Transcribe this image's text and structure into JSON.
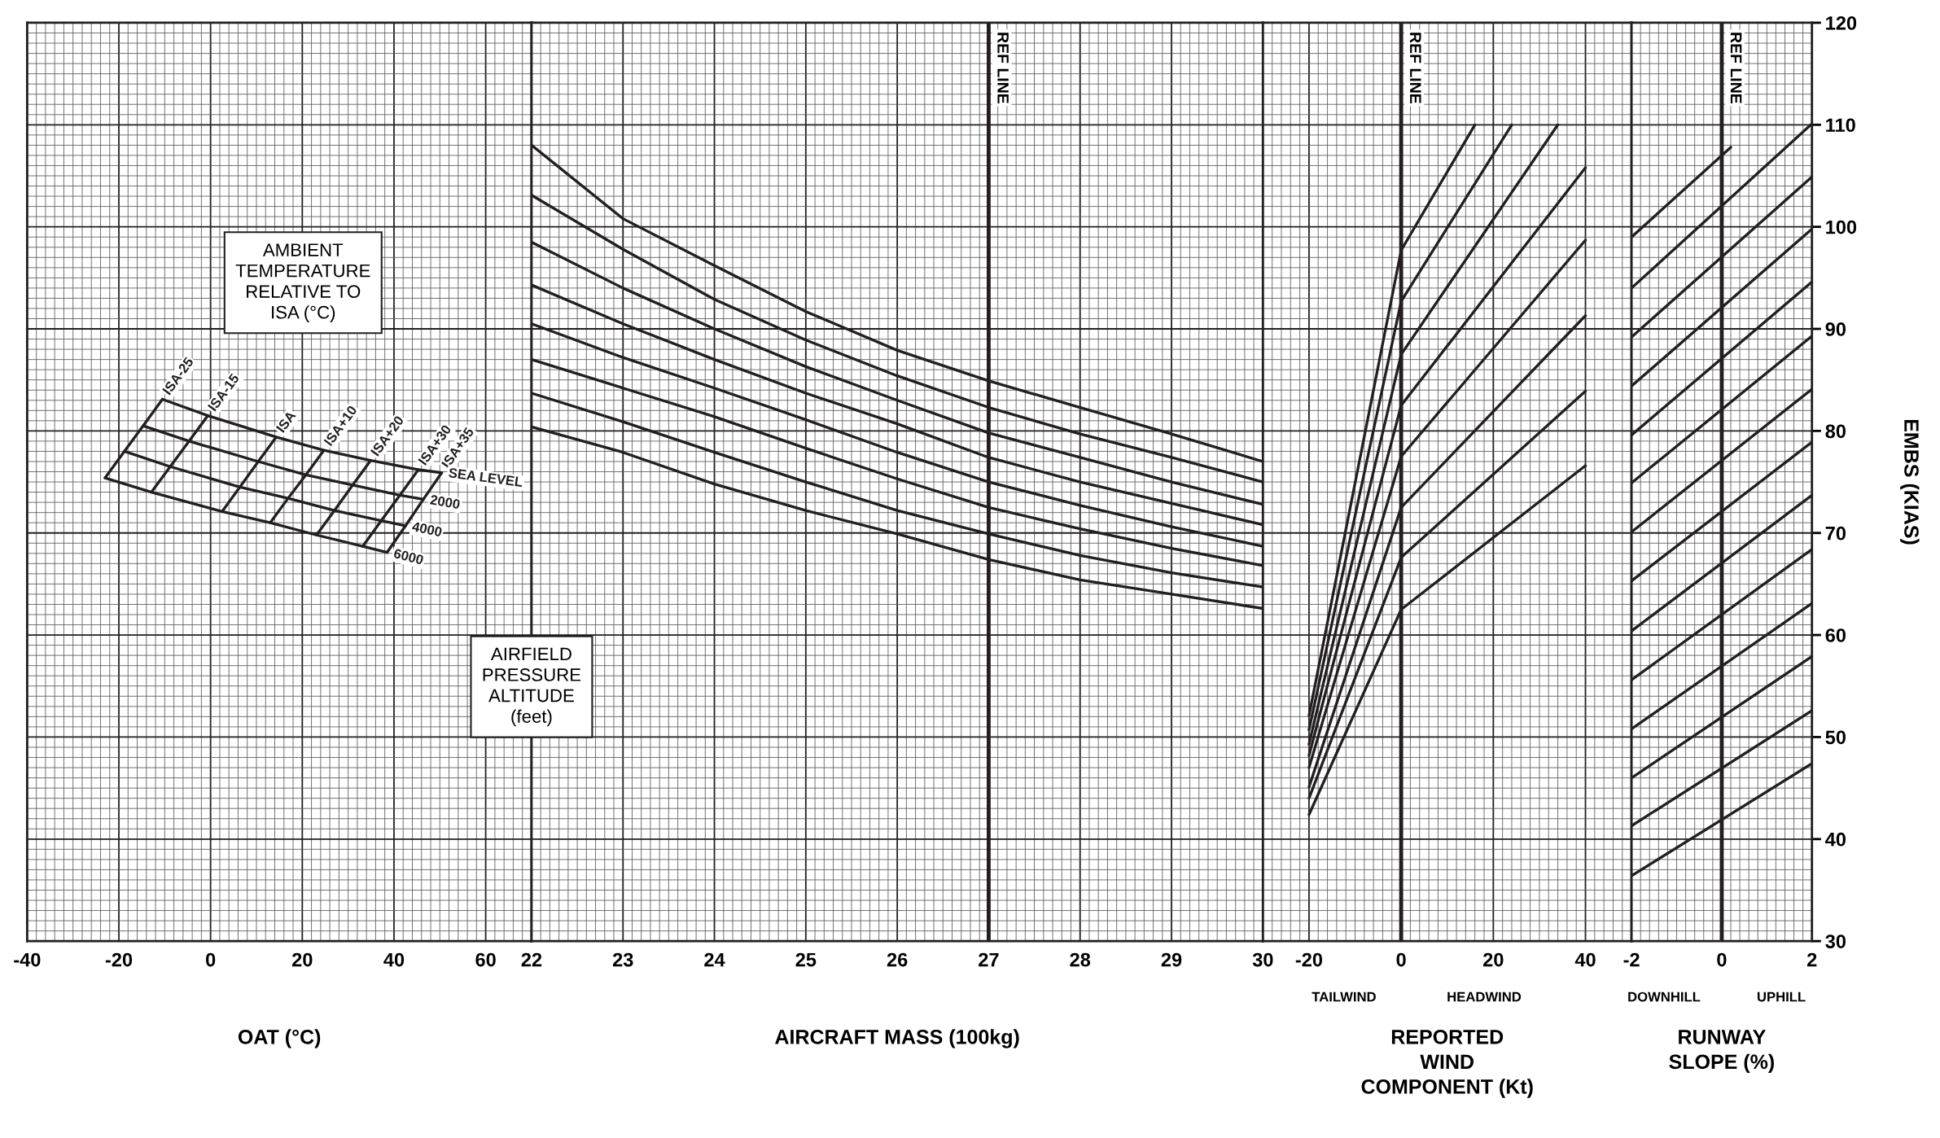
{
  "chart_data": [
    {
      "type": "line",
      "xlabel": "OAT (°C)",
      "xlim": [
        -40,
        70
      ],
      "xticks": [
        -40,
        -20,
        0,
        20,
        40,
        60
      ],
      "ylim": [
        30,
        120
      ],
      "yticks": [
        30,
        40,
        50,
        60,
        70,
        80,
        90,
        100,
        110,
        120
      ],
      "grid": true,
      "tick_labels": "x",
      "legend": false,
      "annotations": [
        "AMBIENT\nTEMPERATURE\nRELATIVE TO\nISA (°C)",
        "AIRFIELD\nPRESSURE\nALTITUDE\n(feet)"
      ],
      "series": [
        {
          "name": "ISA-25",
          "color": "#231f20",
          "x": [
            -23.0,
            -18.8,
            -14.7,
            -10.5
          ],
          "values": [
            75.4,
            78.0,
            80.5,
            83.1
          ]
        },
        {
          "name": "ISA-15",
          "color": "#231f20",
          "x": [
            -12.9,
            -8.8,
            -4.7,
            -0.6
          ],
          "values": [
            74.0,
            76.5,
            79.0,
            81.5
          ]
        },
        {
          "name": "ISA",
          "color": "#231f20",
          "x": [
            2.5,
            6.4,
            10.4,
            14.3
          ],
          "values": [
            72.1,
            74.5,
            77.0,
            79.4
          ]
        },
        {
          "name": "ISA+10",
          "color": "#231f20",
          "x": [
            13.0,
            16.9,
            20.8,
            24.7
          ],
          "values": [
            71.0,
            73.4,
            75.7,
            78.1
          ]
        },
        {
          "name": "ISA+20",
          "color": "#231f20",
          "x": [
            23.1,
            27.0,
            31.0,
            34.9
          ],
          "values": [
            69.8,
            72.2,
            74.7,
            77.1
          ]
        },
        {
          "name": "ISA+30",
          "color": "#231f20",
          "x": [
            33.2,
            37.2,
            41.3,
            45.3
          ],
          "values": [
            68.7,
            71.2,
            73.7,
            76.2
          ]
        },
        {
          "name": "ISA+35",
          "color": "#231f20",
          "x": [
            38.5,
            42.5,
            46.4,
            50.4
          ],
          "values": [
            68.1,
            70.7,
            73.3,
            75.9
          ]
        },
        {
          "name": "SEA LEVEL",
          "color": "#231f20",
          "x": [
            -10.5,
            -0.6,
            14.3,
            24.7,
            34.9,
            45.3,
            50.4
          ],
          "values": [
            83.1,
            81.5,
            79.4,
            78.1,
            77.1,
            76.2,
            75.9
          ]
        },
        {
          "name": "2000",
          "color": "#231f20",
          "x": [
            -14.7,
            -4.7,
            10.4,
            20.8,
            31.0,
            41.3,
            46.4
          ],
          "values": [
            80.5,
            79.0,
            77.0,
            75.7,
            74.7,
            73.7,
            73.3
          ]
        },
        {
          "name": "4000",
          "color": "#231f20",
          "x": [
            -18.8,
            -8.8,
            6.4,
            16.9,
            27.0,
            37.2,
            42.5
          ],
          "values": [
            78.0,
            76.5,
            74.5,
            73.4,
            72.2,
            71.2,
            70.7
          ]
        },
        {
          "name": "6000",
          "color": "#231f20",
          "x": [
            -23.0,
            -12.9,
            2.5,
            13.0,
            23.1,
            33.2,
            38.5
          ],
          "values": [
            75.4,
            74.0,
            72.1,
            71.0,
            69.8,
            68.7,
            68.1
          ]
        }
      ]
    },
    {
      "type": "line",
      "xlabel": "AIRCRAFT MASS (100kg)",
      "xlim": [
        22,
        30
      ],
      "xticks": [
        22,
        23,
        24,
        25,
        26,
        27,
        28,
        29,
        30
      ],
      "ylim": [
        30,
        120
      ],
      "yticks": [
        30,
        40,
        50,
        60,
        70,
        80,
        90,
        100,
        110,
        120
      ],
      "grid": true,
      "tick_labels": "x",
      "legend": false,
      "ref_lines": [
        {
          "axis": "x",
          "value": 27,
          "label": "REF LINE"
        }
      ],
      "x": [
        22,
        23,
        24,
        25,
        26,
        27,
        28,
        29,
        30
      ],
      "series": [
        {
          "color": "#231f20",
          "values": [
            108.0,
            100.8,
            96.2,
            91.7,
            87.9,
            84.9,
            82.3,
            79.7,
            77.0
          ]
        },
        {
          "color": "#231f20",
          "values": [
            103.1,
            97.8,
            92.9,
            88.9,
            85.4,
            82.3,
            79.7,
            77.4,
            75.0
          ]
        },
        {
          "color": "#231f20",
          "values": [
            98.5,
            94.0,
            90.0,
            86.3,
            83.0,
            79.8,
            77.4,
            75.0,
            72.8
          ]
        },
        {
          "color": "#231f20",
          "values": [
            94.3,
            90.5,
            87.0,
            83.7,
            80.7,
            77.4,
            75.0,
            72.9,
            70.8
          ]
        },
        {
          "color": "#231f20",
          "values": [
            90.5,
            87.2,
            84.2,
            81.1,
            77.9,
            75.0,
            72.7,
            70.6,
            68.7
          ]
        },
        {
          "color": "#231f20",
          "values": [
            87.0,
            84.2,
            81.4,
            78.3,
            75.3,
            72.5,
            70.4,
            68.5,
            66.8
          ]
        },
        {
          "color": "#231f20",
          "values": [
            83.7,
            80.9,
            77.9,
            75.0,
            72.2,
            69.9,
            67.8,
            66.1,
            64.7
          ]
        },
        {
          "color": "#231f20",
          "values": [
            80.4,
            77.9,
            74.8,
            72.2,
            69.9,
            67.4,
            65.4,
            64.0,
            62.6
          ]
        }
      ]
    },
    {
      "type": "line",
      "xlabel": "REPORTED\nWIND\nCOMPONENT (Kt)",
      "xlim": [
        -30,
        50
      ],
      "xticks": [
        -20,
        0,
        20,
        40
      ],
      "ylim": [
        30,
        120
      ],
      "yticks": [
        30,
        40,
        50,
        60,
        70,
        80,
        90,
        100,
        110,
        120
      ],
      "grid": true,
      "tick_labels": "x",
      "legend": false,
      "annotations": [
        "TAILWIND",
        "HEADWIND"
      ],
      "ref_lines": [
        {
          "axis": "x",
          "value": 0,
          "label": "REF LINE"
        }
      ],
      "series": [
        {
          "color": "#231f20",
          "x": [
            -20,
            0,
            16
          ],
          "values": [
            52.1,
            97.7,
            110
          ]
        },
        {
          "color": "#231f20",
          "x": [
            -20,
            0,
            24
          ],
          "values": [
            50.7,
            92.7,
            110
          ]
        },
        {
          "color": "#231f20",
          "x": [
            -20,
            0,
            34
          ],
          "values": [
            49.3,
            87.5,
            110
          ]
        },
        {
          "color": "#231f20",
          "x": [
            -20,
            0,
            40
          ],
          "values": [
            48.2,
            82.5,
            105.8
          ]
        },
        {
          "color": "#231f20",
          "x": [
            -20,
            0,
            40
          ],
          "values": [
            47.0,
            77.5,
            98.7
          ]
        },
        {
          "color": "#231f20",
          "x": [
            -20,
            0,
            40
          ],
          "values": [
            45.1,
            72.5,
            91.3
          ]
        },
        {
          "color": "#231f20",
          "x": [
            -20,
            0,
            40
          ],
          "values": [
            44.0,
            67.6,
            83.9
          ]
        },
        {
          "color": "#231f20",
          "x": [
            -20,
            0,
            40
          ],
          "values": [
            42.4,
            62.5,
            76.6
          ]
        }
      ]
    },
    {
      "type": "line",
      "xlabel": "RUNWAY\nSLOPE (%)",
      "ylabel": "EMBS (KIAS)",
      "xlim": [
        -2,
        2
      ],
      "xticks": [
        -2,
        0,
        2
      ],
      "ylim": [
        30,
        120
      ],
      "yticks": [
        30,
        40,
        50,
        60,
        70,
        80,
        90,
        100,
        110,
        120
      ],
      "grid": true,
      "legend": false,
      "annotations": [
        "DOWNHILL",
        "UPHILL"
      ],
      "ref_lines": [
        {
          "axis": "x",
          "value": 0,
          "label": "REF LINE"
        }
      ],
      "series": [
        {
          "color": "#231f20",
          "x": [
            -2,
            0.2
          ],
          "values": [
            99.0,
            107.8
          ]
        },
        {
          "color": "#231f20",
          "x": [
            -2,
            2
          ],
          "values": [
            94.0,
            110.1
          ]
        },
        {
          "color": "#231f20",
          "x": [
            -2,
            2
          ],
          "values": [
            89.2,
            104.9
          ]
        },
        {
          "color": "#231f20",
          "x": [
            -2,
            2
          ],
          "values": [
            84.4,
            99.8
          ]
        },
        {
          "color": "#231f20",
          "x": [
            -2,
            2
          ],
          "values": [
            79.6,
            94.6
          ]
        },
        {
          "color": "#231f20",
          "x": [
            -2,
            2
          ],
          "values": [
            74.9,
            89.3
          ]
        },
        {
          "color": "#231f20",
          "x": [
            -2,
            2
          ],
          "values": [
            70.1,
            84.1
          ]
        },
        {
          "color": "#231f20",
          "x": [
            -2,
            2
          ],
          "values": [
            65.3,
            78.9
          ]
        },
        {
          "color": "#231f20",
          "x": [
            -2,
            2
          ],
          "values": [
            60.4,
            73.7
          ]
        },
        {
          "color": "#231f20",
          "x": [
            -2,
            2
          ],
          "values": [
            55.6,
            68.4
          ]
        },
        {
          "color": "#231f20",
          "x": [
            -2,
            2
          ],
          "values": [
            50.8,
            63.1
          ]
        },
        {
          "color": "#231f20",
          "x": [
            -2,
            2
          ],
          "values": [
            46.0,
            57.9
          ]
        },
        {
          "color": "#231f20",
          "x": [
            -2,
            2
          ],
          "values": [
            41.3,
            52.6
          ]
        },
        {
          "color": "#231f20",
          "x": [
            -2,
            2
          ],
          "values": [
            36.4,
            47.4
          ]
        }
      ]
    }
  ]
}
